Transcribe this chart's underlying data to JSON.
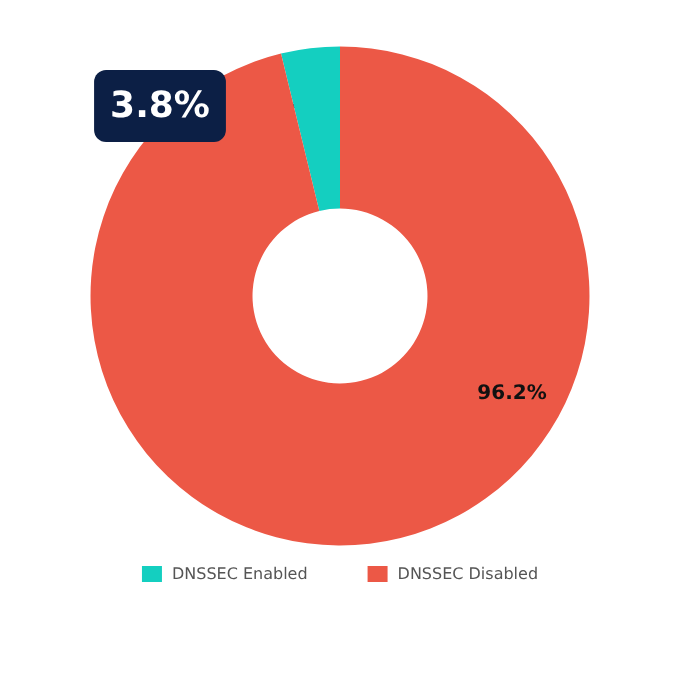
{
  "chart_data": {
    "type": "donut",
    "categories": [
      "DNSSEC Enabled",
      "DNSSEC Disabled"
    ],
    "values": [
      3.8,
      96.2
    ],
    "colors": [
      "#14cfc0",
      "#ec5846"
    ],
    "value_labels": [
      "3.8%",
      "96.2%"
    ],
    "legend": "bottom"
  }
}
